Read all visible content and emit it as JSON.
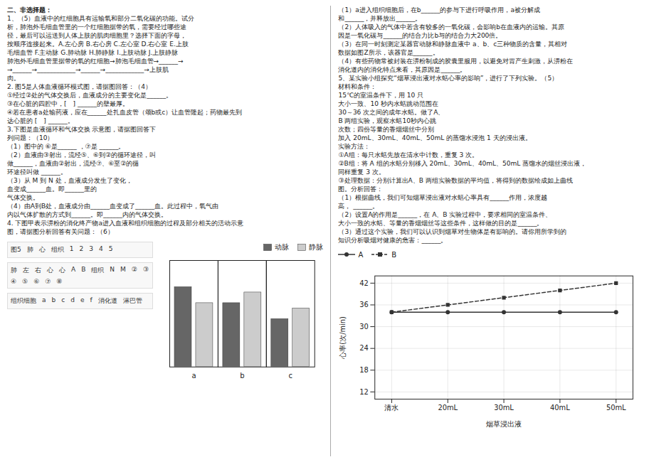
{
  "chart_data": [
    {
      "type": "line",
      "xlabel": "烟草浸出液",
      "ylabel": "心率(次/min)",
      "categories": [
        "清水",
        "20mL",
        "30mL",
        "40mL",
        "50mL"
      ],
      "series": [
        {
          "name": "A",
          "color": "#333333",
          "marker": "circle",
          "line_style": "solid",
          "values": [
            34,
            34,
            34,
            34,
            34
          ]
        },
        {
          "name": "B",
          "color": "#333333",
          "marker": "square",
          "line_style": "dashed",
          "values": [
            34,
            36,
            38,
            40,
            42
          ]
        }
      ],
      "ylim": [
        10,
        44
      ],
      "yticks": [
        12,
        18,
        24,
        30,
        36,
        42
      ],
      "grid": true,
      "legend": "upper left",
      "annotations": [
        [
          "二、非选择题：",
          "1、（5）血液中的红细胞具有运输氧和部分二氧化碳的功能。试分",
          "析，肺泡外毛细血管里的一个红细胞据带的氧，需要经过哪些途",
          "径，最后可以运送到人体上肢的肌肉细胞里？选择下面的字母，",
          "按顺序连接起来。A.左心房 B.右心房 C.左心室 D.右心室 E.上肢",
          "毛细血管 F.主动脉 G.肺动脉 H.肺静脉 I.上肢动脉 J.上肢静脉",
          "肺泡外毛细血管里据带的氧的红细胞→肺泡毛细血管→______→",
          "→______→____________→______→____________→上肢肌",
          "肉。",
          "2. 图5是人体血液循环模式图，请据图回答：（4）",
          "①经过②处的气体交换后，血液成分的主要变化是______。",
          "③在心脏的四腔中，[　] ______的壁最厚。",
          "④若在患者a处输药液，应在______处扎血皮管（颂b或c）让血管隆起；药物最先到",
          "达心脏的 [　] ______。",
          "3.下图是血液循环和气体交换 示意图，请据图回答下",
          "列问题：（10）",
          "（1）图中的 ⑥是______  ，⑦是 ______。",
          "（2）血液由③射出，流经⑤、⑥到②的循环途径，叫",
          "做______，血液由②射出，流经⑦、⑥至②的循",
          "环途径叫做 ______。",
          "（3）从 M 到 N 处，血液成分发生了变化，",
          "血变成______血。即______里的",
          "气体交换。",
          "（4）由A到B处，血液成分由______血变成了______血。此过程中，氧气由",
          "内以气体扩散的方式到______。即______内的气体交换。",
          "4. 下图甲表示淠粉的消化终产物a进入血液和组织细胞的过程及部分相关的活动示意",
          "图，请据图分析回答有关问题：（6）"
        ],
        [
          "（1）a进入组织细胞后，在b______的参与下进行呼吸作用，a被分解成",
          "和______，并释放出______。",
          "（2）人体吸入的气体中若含有较多的一氧化碳，会影响b在血液内的运输。其原",
          "因是一氧化碳与______的结合力比b与的结合力大200倍。",
          "（3）在同一时刻测定某器官动脉和静脉血液中 a、b、c三种物质的含量，其相对",
          "数据如图Z所示，该器官是______。",
          "（4）有些药物常被封装在淠粉制成的胶囊里服用，以避免对胃产生刺激，从淠粉在",
          "消化道内的消化特点来看，其原因是______。",
          "5、某实验小组探究“烟草浸出液对水蛞心率的影响”，进行了下列实验。（5）",
          "材料和条件：",
          "15℃的室温条件下，用 10 只",
          "大小一致、10 秒内水蛞跳动范围在",
          "30～36 次之间的成年水蛞。做了A、",
          "B 两组实验，观察水蛞10秒内心跳",
          "次数；四份等量的香烟烟丝中分别",
          "加入 20mL、30mL、40mL、50mL 的蒸馏水浸泡 1 天的浸出液。",
          "实验方法：",
          "①A组：每只水蛞先放在清水中计数，重复 3 次。",
          "②B组：将 A 组的水蛞分别移入 20mL、30mL、40mL、50mL 蒸馏水的烟丝浸出液，",
          "同样重复 3 次。",
          "③处理数据：分别计算出A、B 两组实验数据的平均值，将得到的数据绘成如上曲线",
          "图。分析回答：",
          "（1）根据曲线，我们可知烟草浸出液对水蛞心率具有______作用，浓度越",
          "高， ______。",
          "（2）设置A的作用是______，在 A、B 实验过程中，要求相同的室温条件、",
          "大小一致的水蛞、等量的香烟烟丝等这些条件，这样做的目的是______。",
          "（3）通过这个实验，我们可以认识到烟草对生物体是有影响的。请你用所学到的",
          "知识分析吸烟对健康的危害：______。"
        ],
        [
          "图5",
          "肺",
          "心",
          "组织",
          "1",
          "2",
          "3",
          "4",
          "5"
        ],
        [
          "肺",
          "左",
          "右",
          "心",
          "心",
          "A",
          "B",
          "组织",
          "N",
          "M",
          "②",
          "③",
          "④",
          "⑤",
          "⑥",
          "⑦",
          "⑧"
        ],
        [
          "组织细胞",
          "a",
          "b",
          "c",
          "d",
          "e",
          "f",
          "消化道",
          "淋巴管"
        ]
      ]
    },
    {
      "type": "bar",
      "categories": [
        "a",
        "b",
        "c"
      ],
      "series": [
        {
          "name": "动脉",
          "color": "#666666",
          "values": [
            0.75,
            0.6,
            0.45
          ]
        },
        {
          "name": "静脉",
          "color": "#cccccc",
          "values": [
            0.6,
            0.7,
            0.55
          ]
        }
      ],
      "ylim": [
        0,
        1.0
      ],
      "tick_labels": "x",
      "grid": false,
      "legend": "upper right"
    }
  ]
}
